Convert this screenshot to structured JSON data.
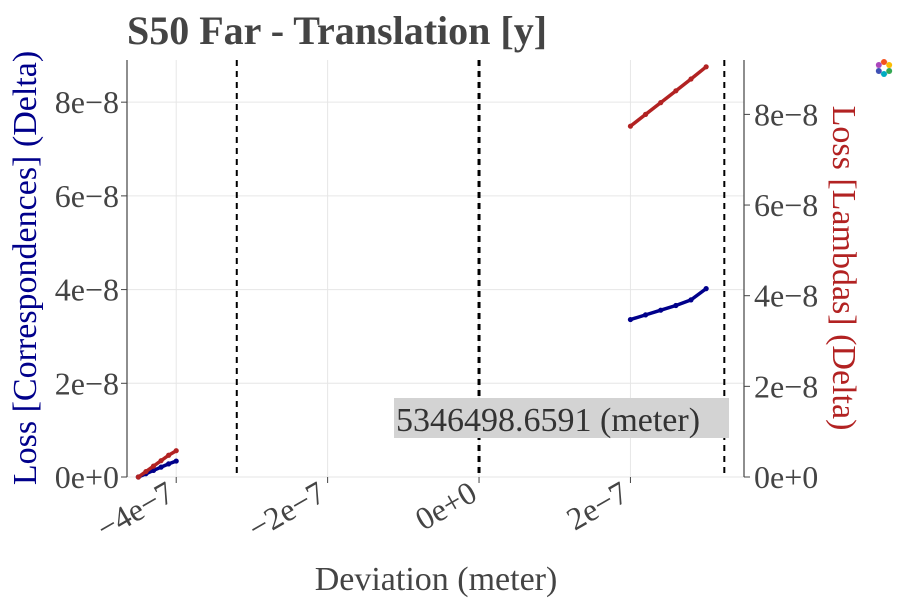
{
  "chart_data": {
    "type": "scatter",
    "title": "S50 Far - Translation [y]",
    "xlabel": "Deviation (meter)",
    "ylabel_left": "Loss [Correspondences] (Delta)",
    "ylabel_right": "Loss [Lambdas] (Delta)",
    "xlim": [
      -4.65e-07,
      3.5e-07
    ],
    "ylim_left": [
      0,
      8.9e-08
    ],
    "ylim_right": [
      0,
      9.2e-08
    ],
    "x_ticks": [
      -4e-07,
      -2e-07,
      0,
      2e-07
    ],
    "x_tick_labels": [
      "−4e−7",
      "−2e−7",
      "0e+0",
      "2e−7"
    ],
    "y_left_ticks": [
      0,
      2e-08,
      4e-08,
      6e-08,
      8e-08
    ],
    "y_left_tick_labels": [
      "0e+0",
      "2e−8",
      "4e−8",
      "6e−8",
      "8e−8"
    ],
    "y_right_ticks": [
      0,
      2e-08,
      4e-08,
      6e-08,
      8e-08
    ],
    "y_right_tick_labels": [
      "0e+0",
      "2e−8",
      "4e−8",
      "6e−8",
      "8e−8"
    ],
    "vlines": [
      -3.2e-07,
      0,
      3.24e-07
    ],
    "annotation": "5346498.6591 (meter)",
    "colors": {
      "left": "#00008b",
      "right": "#b22222",
      "grid": "#e6e6e6",
      "text": "#444444"
    },
    "series": [
      {
        "axis": "left",
        "x": [
          -4.5e-07,
          -4.4e-07,
          -4.3e-07,
          -4.2e-07,
          -4.1e-07,
          -4e-07,
          2e-07,
          2.2e-07,
          2.4e-07,
          2.6e-07,
          2.8e-07,
          3e-07
        ],
        "y": [
          0.0,
          7e-10,
          1.4e-09,
          2.1e-09,
          2.8e-09,
          3.4e-09,
          3.36e-08,
          3.46e-08,
          3.56e-08,
          3.66e-08,
          3.78e-08,
          4.02e-08
        ]
      },
      {
        "axis": "right",
        "x": [
          -4.5e-07,
          -4.4e-07,
          -4.3e-07,
          -4.2e-07,
          -4.1e-07,
          -4e-07,
          2e-07,
          2.2e-07,
          2.4e-07,
          2.6e-07,
          2.8e-07,
          3e-07
        ],
        "y": [
          0.0,
          1.2e-09,
          2.4e-09,
          3.6e-09,
          4.8e-09,
          5.8e-09,
          7.74e-08,
          8e-08,
          8.26e-08,
          8.52e-08,
          8.78e-08,
          9.05e-08
        ]
      }
    ]
  }
}
